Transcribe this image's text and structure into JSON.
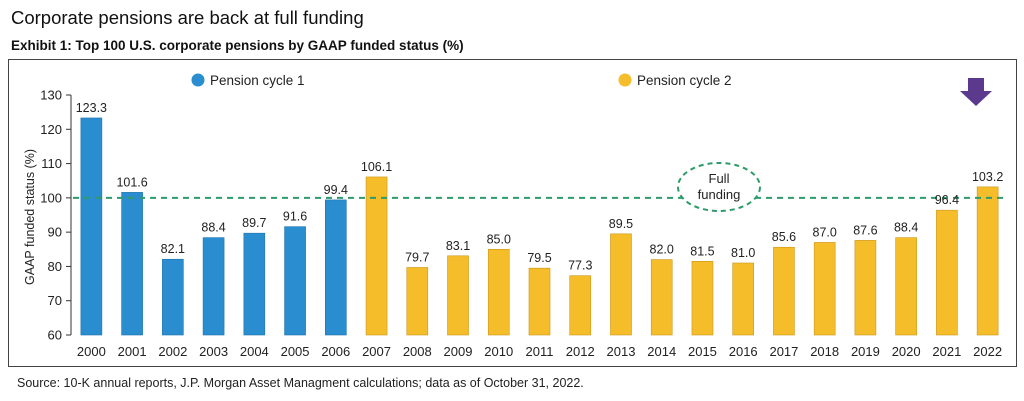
{
  "title": "Corporate pensions are back at full funding",
  "subtitle": "Exhibit 1: Top 100 U.S. corporate pensions by GAAP funded status (%)",
  "source": "Source: 10-K annual reports, J.P. Morgan Asset Managment calculations; data as of October 31, 2022.",
  "annotation": {
    "line1": "Full",
    "line2": "funding"
  },
  "colors": {
    "cycle1": "#2a8dcf",
    "cycle2": "#f6bd2b",
    "reference_line": "#2e9b6a",
    "arrow": "#5b3a8e"
  },
  "icons": {
    "arrow": "down-arrow-icon"
  },
  "chart_data": {
    "type": "bar",
    "title": "Exhibit 1: Top 100 U.S. corporate pensions by GAAP funded status (%)",
    "xlabel": "",
    "ylabel": "GAAP funded status (%)",
    "ylim": [
      60,
      130
    ],
    "yticks": [
      60,
      70,
      80,
      90,
      100,
      110,
      120,
      130
    ],
    "reference_line": 100,
    "legend_position": "top",
    "grid": false,
    "categories": [
      "2000",
      "2001",
      "2002",
      "2003",
      "2004",
      "2005",
      "2006",
      "2007",
      "2008",
      "2009",
      "2010",
      "2011",
      "2012",
      "2013",
      "2014",
      "2015",
      "2016",
      "2017",
      "2018",
      "2019",
      "2020",
      "2021",
      "2022"
    ],
    "series": [
      {
        "name": "Pension cycle 1",
        "color": "#2a8dcf",
        "values": [
          123.3,
          101.6,
          82.1,
          88.4,
          89.7,
          91.6,
          99.4,
          null,
          null,
          null,
          null,
          null,
          null,
          null,
          null,
          null,
          null,
          null,
          null,
          null,
          null,
          null,
          null
        ],
        "labels": [
          "123.3",
          "101.6",
          "82.1",
          "88.4",
          "89.7",
          "91.6",
          "99.4",
          null,
          null,
          null,
          null,
          null,
          null,
          null,
          null,
          null,
          null,
          null,
          null,
          null,
          null,
          null,
          null
        ]
      },
      {
        "name": "Pension cycle 2",
        "color": "#f6bd2b",
        "values": [
          null,
          null,
          null,
          null,
          null,
          null,
          null,
          106.1,
          79.7,
          83.1,
          85.0,
          79.5,
          77.3,
          89.5,
          82.0,
          81.5,
          81.0,
          85.6,
          87.0,
          87.6,
          88.4,
          96.4,
          103.2
        ],
        "labels": [
          null,
          null,
          null,
          null,
          null,
          null,
          null,
          "106.1",
          "79.7",
          "83.1",
          "85.0",
          "79.5",
          "77.3",
          "89.5",
          "82.0",
          "81.5",
          "81.0",
          "85.6",
          "87.0",
          "87.6",
          "88.4",
          "96.4",
          "103.2"
        ]
      }
    ]
  }
}
